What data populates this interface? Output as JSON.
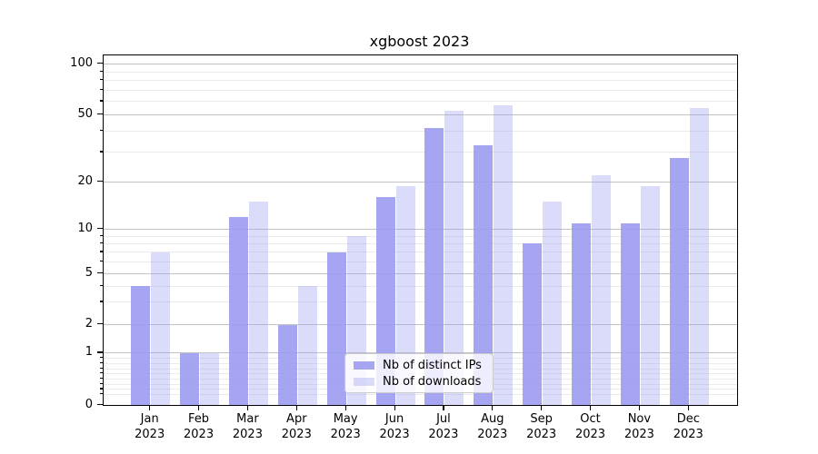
{
  "chart_data": {
    "type": "bar",
    "title": "xgboost 2023",
    "year": "2023",
    "categories": [
      "Jan",
      "Feb",
      "Mar",
      "Apr",
      "May",
      "Jun",
      "Jul",
      "Aug",
      "Sep",
      "Oct",
      "Nov",
      "Dec"
    ],
    "series": [
      {
        "name": "Nb of distinct IPs",
        "color": "rgba(154,154,240,0.89)",
        "values": [
          4,
          1,
          12,
          2,
          7,
          16,
          42,
          33,
          8,
          11,
          11,
          28
        ]
      },
      {
        "name": "Nb of downloads",
        "color": "rgba(154,154,240,0.36)",
        "values": [
          7,
          1,
          15,
          4,
          9,
          19,
          53,
          57,
          15,
          22,
          19,
          55
        ]
      }
    ],
    "yscale": "symlog",
    "yticks": [
      0,
      1,
      2,
      5,
      10,
      20,
      50,
      100
    ],
    "ylim": [
      0,
      114
    ],
    "grid": "both",
    "legend_position": "lower center",
    "bar_colors_hex_over_white": {
      "distinct_ips": "#a5a5f1",
      "downloads": "#dbdbf9"
    }
  }
}
